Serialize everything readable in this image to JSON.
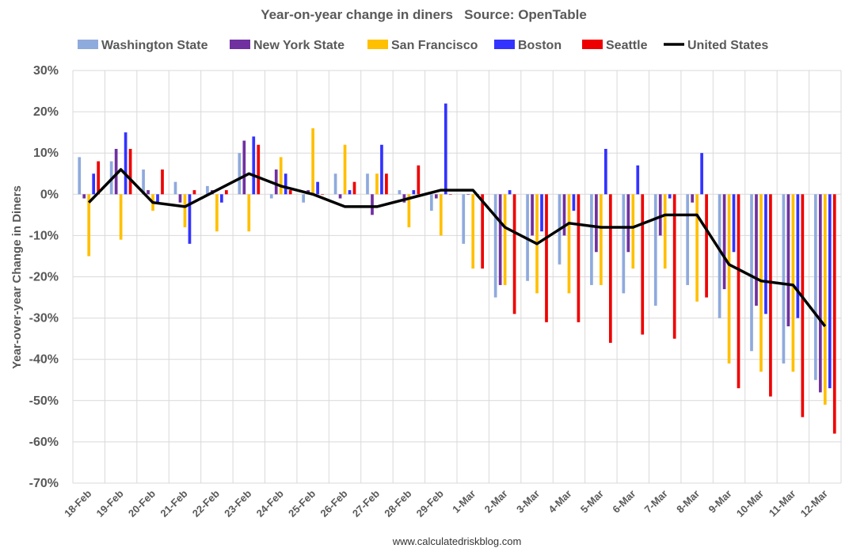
{
  "chart_data": {
    "type": "bar",
    "title": "Year-on-year change in diners   Source: OpenTable",
    "xlabel": "",
    "ylabel": "Year-over-year Change in Diners",
    "source_note": "www.calculatedriskblog.com",
    "ylim": [
      -70,
      30
    ],
    "y_step": 10,
    "y_tick_suffix": "%",
    "grid": true,
    "legend_position": "top",
    "categories": [
      "18-Feb",
      "19-Feb",
      "20-Feb",
      "21-Feb",
      "22-Feb",
      "23-Feb",
      "24-Feb",
      "25-Feb",
      "26-Feb",
      "27-Feb",
      "28-Feb",
      "29-Feb",
      "1-Mar",
      "2-Mar",
      "3-Mar",
      "4-Mar",
      "5-Mar",
      "6-Mar",
      "7-Mar",
      "8-Mar",
      "9-Mar",
      "10-Mar",
      "11-Mar",
      "12-Mar"
    ],
    "series": [
      {
        "name": "Washington State",
        "kind": "bar",
        "color": "#8FAADC",
        "values": [
          9,
          8,
          6,
          3,
          2,
          10,
          -1,
          -2,
          5,
          5,
          1,
          -4,
          -12,
          -25,
          -21,
          -17,
          -22,
          -24,
          -27,
          -22,
          -30,
          -38,
          -41,
          -45
        ]
      },
      {
        "name": "New York State",
        "kind": "bar",
        "color": "#7030A0",
        "values": [
          -1,
          11,
          1,
          -2,
          1,
          13,
          6,
          1,
          -1,
          -5,
          -2,
          -1,
          0,
          -22,
          -10,
          -10,
          -14,
          -14,
          -10,
          -2,
          -23,
          -27,
          -32,
          -48
        ]
      },
      {
        "name": "San Francisco",
        "kind": "bar",
        "color": "#FFC000",
        "values": [
          -15,
          -11,
          -4,
          -8,
          -9,
          -9,
          9,
          16,
          12,
          5,
          -8,
          -10,
          -18,
          -22,
          -24,
          -24,
          -22,
          -18,
          -18,
          -26,
          -41,
          -43,
          -43,
          -51
        ]
      },
      {
        "name": "Boston",
        "kind": "bar",
        "color": "#3333FF",
        "values": [
          5,
          15,
          -2,
          -12,
          -2,
          14,
          5,
          3,
          1,
          12,
          1,
          22,
          0,
          1,
          -9,
          -4,
          11,
          7,
          -1,
          10,
          -14,
          -29,
          -30,
          -47
        ]
      },
      {
        "name": "Seattle",
        "kind": "bar",
        "color": "#EE0000",
        "values": [
          8,
          11,
          6,
          1,
          1,
          12,
          1,
          0,
          3,
          5,
          7,
          0,
          -18,
          -29,
          -31,
          -31,
          -36,
          -34,
          -35,
          -25,
          -47,
          -49,
          -54,
          -58
        ]
      },
      {
        "name": "United States",
        "kind": "line",
        "color": "#000000",
        "values": [
          -2,
          6,
          -2,
          -3,
          1,
          5,
          2,
          0,
          -3,
          -3,
          -1,
          1,
          1,
          -8,
          -12,
          -7,
          -8,
          -8,
          -5,
          -5,
          -17,
          -21,
          -22,
          -32
        ]
      }
    ]
  }
}
